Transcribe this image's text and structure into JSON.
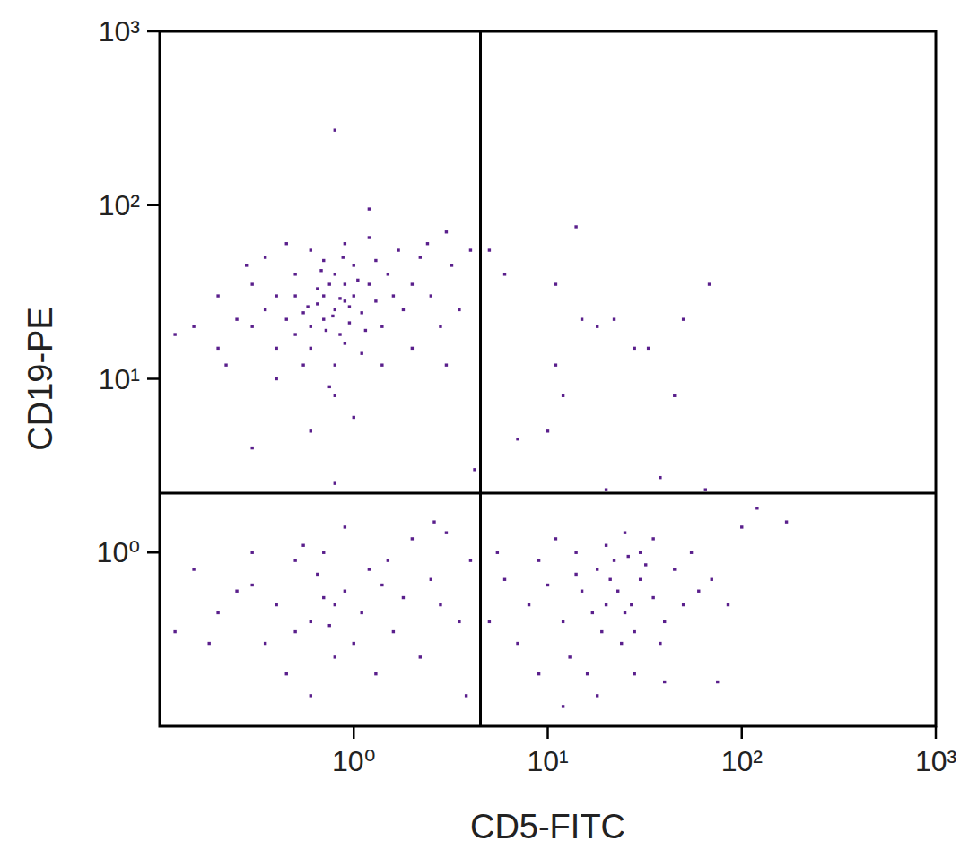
{
  "chart_data": {
    "type": "scatter",
    "x_label": "CD5-FITC",
    "y_label": "CD19-PE",
    "log": true,
    "color": "#5a1f8c",
    "marker": "dot",
    "xlim": [
      0.1,
      1000
    ],
    "ylim": [
      0.1,
      1000
    ],
    "xticks": [
      {
        "value": 1,
        "label": "10⁰"
      },
      {
        "value": 10,
        "label": "10¹"
      },
      {
        "value": 100,
        "label": "10²"
      },
      {
        "value": 1000,
        "label": "10³"
      }
    ],
    "yticks": [
      {
        "value": 1,
        "label": "10⁰"
      },
      {
        "value": 10,
        "label": "10¹"
      },
      {
        "value": 100,
        "label": "10²"
      },
      {
        "value": 1000,
        "label": "10³"
      }
    ],
    "quadrant": {
      "x": 4.5,
      "y": 2.2
    },
    "x": [
      0.8,
      0.7,
      0.9,
      0.6,
      1.0,
      0.75,
      0.85,
      0.65,
      1.1,
      0.55,
      0.95,
      0.7,
      0.8,
      1.2,
      0.5,
      0.45,
      1.3,
      0.6,
      0.9,
      1.0,
      0.7,
      1.5,
      1.4,
      0.4,
      0.35,
      0.3,
      1.6,
      1.8,
      2.0,
      0.5,
      0.6,
      0.9,
      1.2,
      0.4,
      0.55,
      0.8,
      1.1,
      0.3,
      0.25,
      0.2,
      0.15,
      0.12,
      0.2,
      2.2,
      2.5,
      3.0,
      2.8,
      3.5,
      4.0,
      3.2,
      1.7,
      0.8,
      1.0,
      0.6,
      0.75,
      1.2,
      0.8,
      0.35,
      0.28,
      0.45,
      1.4,
      2.0,
      0.9,
      0.65,
      1.05,
      0.72,
      0.85,
      0.58,
      0.78,
      0.95,
      1.15,
      0.5,
      0.68,
      0.88,
      1.3,
      2.4,
      0.22,
      0.4,
      3.0,
      0.3,
      0.8,
      0.6,
      0.7,
      0.5,
      0.8,
      0.9,
      0.4,
      0.3,
      0.25,
      0.2,
      0.15,
      0.12,
      1.0,
      1.2,
      1.5,
      1.8,
      2.0,
      2.5,
      3.0,
      3.5,
      4.0,
      2.2,
      1.3,
      0.6,
      0.45,
      0.35,
      0.7,
      0.9,
      0.55,
      0.8,
      1.1,
      1.6,
      2.8,
      3.8,
      0.3,
      0.18,
      0.65,
      1.4,
      2.6,
      0.5,
      0.75,
      20,
      15,
      25,
      30,
      12,
      18,
      22,
      28,
      35,
      10,
      8,
      6,
      7,
      9,
      13,
      16,
      24,
      40,
      45,
      50,
      60,
      70,
      85,
      30,
      20,
      14,
      11,
      25,
      35,
      55,
      100,
      120,
      170,
      18,
      12,
      28,
      40,
      9,
      5,
      5.5,
      17,
      23,
      27,
      19,
      32,
      14,
      21,
      26,
      38,
      75,
      5,
      6,
      11,
      15,
      18,
      22,
      28,
      33,
      50,
      68,
      14,
      11,
      12,
      7,
      45,
      10,
      38,
      65,
      20,
      4.2
    ],
    "values": [
      25,
      22,
      28,
      20,
      30,
      35,
      18,
      27,
      24,
      24,
      21,
      30,
      40,
      35,
      18,
      22,
      28,
      15,
      16,
      45,
      48,
      40,
      20,
      30,
      25,
      20,
      30,
      25,
      35,
      40,
      55,
      60,
      65,
      15,
      12,
      12,
      14,
      35,
      22,
      30,
      20,
      18,
      15,
      50,
      30,
      70,
      20,
      25,
      55,
      45,
      55,
      8,
      6,
      5,
      9,
      95,
      270,
      50,
      45,
      60,
      12,
      15,
      35,
      33,
      37,
      19,
      29,
      26,
      23,
      26,
      19,
      30,
      42,
      50,
      48,
      60,
      12,
      10,
      12,
      4,
      2.5,
      0.4,
      0.55,
      0.35,
      0.5,
      0.6,
      0.5,
      0.65,
      0.6,
      0.45,
      0.8,
      0.35,
      0.3,
      0.8,
      0.9,
      0.55,
      1.2,
      0.7,
      1.3,
      0.4,
      0.9,
      0.25,
      0.2,
      0.15,
      0.2,
      0.3,
      1.0,
      1.4,
      1.1,
      0.25,
      0.45,
      0.35,
      0.5,
      0.15,
      1.0,
      0.3,
      0.75,
      0.65,
      1.5,
      0.9,
      0.38,
      0.5,
      0.6,
      0.45,
      0.7,
      0.4,
      0.8,
      0.9,
      0.35,
      0.55,
      0.65,
      0.5,
      0.7,
      0.3,
      0.9,
      0.25,
      0.2,
      0.3,
      0.4,
      0.8,
      0.5,
      0.6,
      0.7,
      0.5,
      1.0,
      1.1,
      1.0,
      1.2,
      1.3,
      1.2,
      1.0,
      1.4,
      1.8,
      1.5,
      0.15,
      0.13,
      0.2,
      0.18,
      0.2,
      0.4,
      1.0,
      0.45,
      0.6,
      0.5,
      0.35,
      0.85,
      0.75,
      0.7,
      0.95,
      0.3,
      0.18,
      55,
      40,
      35,
      22,
      20,
      22,
      15,
      15,
      22,
      35,
      75,
      12,
      8,
      4.5,
      8,
      5,
      2.7,
      2.3,
      2.3,
      3
    ]
  }
}
